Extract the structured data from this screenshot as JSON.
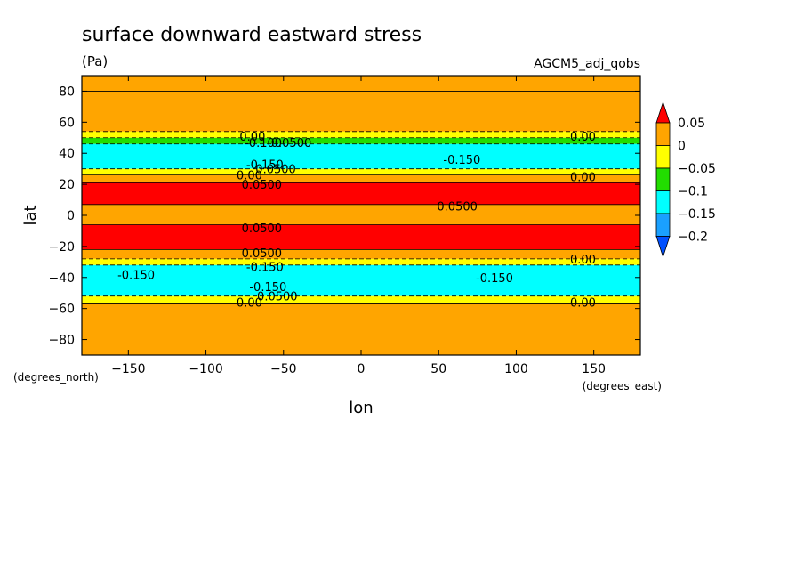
{
  "chart_data": {
    "type": "heatmap",
    "title": "surface downward eastward stress",
    "units": "(Pa)",
    "dataset": "AGCM5_adj_qobs",
    "xlabel": "lon",
    "ylabel": "lat",
    "x_units": "(degrees_east)",
    "y_units": "(degrees_north)",
    "xlim": [
      -180,
      180
    ],
    "ylim": [
      -90,
      90
    ],
    "xticks": [
      -150,
      -100,
      -50,
      0,
      50,
      100,
      150
    ],
    "yticks": [
      80,
      60,
      40,
      20,
      0,
      -20,
      -40,
      -60,
      -80
    ],
    "x_tick_labels": [
      "−150",
      "−100",
      "−50",
      "0",
      "50",
      "100",
      "150"
    ],
    "y_tick_labels": [
      "80",
      "60",
      "40",
      "20",
      "0",
      "−20",
      "−40",
      "−60",
      "−80"
    ],
    "colorbar": {
      "levels": [
        "0.05",
        "0",
        "−0.05",
        "−0.1",
        "−0.15",
        "−0.2"
      ],
      "colors": [
        "#ff0000",
        "#ffa500",
        "#ffff00",
        "#22dd00",
        "#00ffff",
        "#1aa0ff",
        "#0050ff"
      ]
    },
    "zonal_bands": [
      {
        "lat": [
          80,
          90
        ],
        "value": "0 to 0.05"
      },
      {
        "lat": [
          54,
          80
        ],
        "value": "0 to 0.05"
      },
      {
        "lat": [
          50,
          54
        ],
        "value": "-0.05 to 0"
      },
      {
        "lat": [
          46,
          50
        ],
        "value": "-0.1 to -0.05"
      },
      {
        "lat": [
          30,
          46
        ],
        "value": "-0.15 to -0.1"
      },
      {
        "lat": [
          26,
          30
        ],
        "value": "-0.05 to 0"
      },
      {
        "lat": [
          21,
          26
        ],
        "value": "0 to 0.05"
      },
      {
        "lat": [
          7,
          21
        ],
        "value": "> 0.05"
      },
      {
        "lat": [
          -6,
          7
        ],
        "value": "0 to 0.05"
      },
      {
        "lat": [
          -22,
          -6
        ],
        "value": "> 0.05"
      },
      {
        "lat": [
          -28,
          -22
        ],
        "value": "0 to 0.05"
      },
      {
        "lat": [
          -32,
          -28
        ],
        "value": "-0.05 to 0"
      },
      {
        "lat": [
          -52,
          -32
        ],
        "value": "-0.15 to -0.1"
      },
      {
        "lat": [
          -57,
          -52
        ],
        "value": "-0.05 to 0"
      },
      {
        "lat": [
          -90,
          -57
        ],
        "value": "0 to 0.05"
      }
    ],
    "contour_labels": [
      {
        "text": "0.00",
        "lon": -70,
        "lat": 51
      },
      {
        "text": "-0.100",
        "lon": -63,
        "lat": 47
      },
      {
        "text": "0.0500",
        "lon": -45,
        "lat": 47
      },
      {
        "text": "-0.150",
        "lon": -62,
        "lat": 33
      },
      {
        "text": "0.0500",
        "lon": -55,
        "lat": 30
      },
      {
        "text": "0.00",
        "lon": -72,
        "lat": 26
      },
      {
        "text": "0.0500",
        "lon": -64,
        "lat": 20
      },
      {
        "text": "-0.150",
        "lon": 65,
        "lat": 36
      },
      {
        "text": "0.00",
        "lon": 143,
        "lat": 51
      },
      {
        "text": "0.00",
        "lon": 143,
        "lat": 25
      },
      {
        "text": "0.0500",
        "lon": 62,
        "lat": 6
      },
      {
        "text": "0.0500",
        "lon": -64,
        "lat": -8
      },
      {
        "text": "0.0500",
        "lon": -64,
        "lat": -24
      },
      {
        "text": "-0.150",
        "lon": -62,
        "lat": -33
      },
      {
        "text": "-0.150",
        "lon": -145,
        "lat": -38
      },
      {
        "text": "-0.150",
        "lon": 86,
        "lat": -40
      },
      {
        "text": "0.00",
        "lon": 143,
        "lat": -28
      },
      {
        "text": "-0.150",
        "lon": -60,
        "lat": -46
      },
      {
        "text": "0.0500",
        "lon": -54,
        "lat": -52
      },
      {
        "text": "0.00",
        "lon": -72,
        "lat": -56
      },
      {
        "text": "0.00",
        "lon": 143,
        "lat": -56
      }
    ]
  }
}
